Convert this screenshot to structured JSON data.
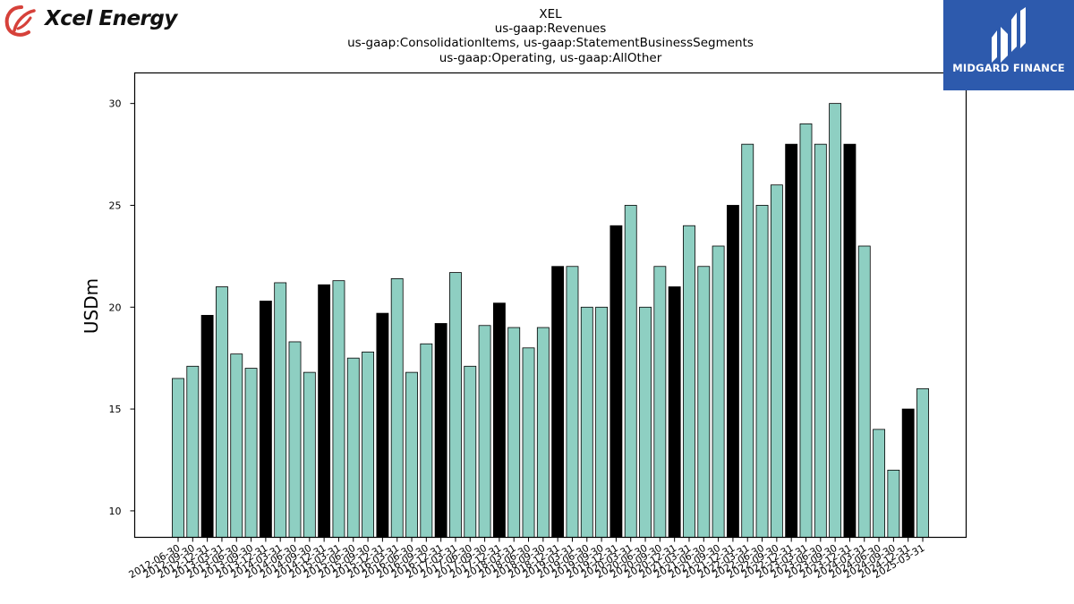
{
  "logos": {
    "left_brand": "Xcel Energy",
    "right_brand": "MIDGARD FINANCE",
    "brand_color_right": "#2d5aad",
    "brand_color_left": "#d6413a"
  },
  "chart_data": {
    "type": "bar",
    "title_lines": [
      "XEL",
      "us-gaap:Revenues",
      "us-gaap:ConsolidationItems, us-gaap:StatementBusinessSegments",
      "us-gaap:Operating, us-gaap:AllOther"
    ],
    "xlabel": "",
    "ylabel": "USDm",
    "ylim": [
      8.7,
      31.5
    ],
    "yticks": [
      10,
      15,
      20,
      25,
      30
    ],
    "grid": false,
    "colors": {
      "regular": "#8ecfc2",
      "year_end": "#000000",
      "edge": "#000000"
    },
    "categories": [
      "2012-06-30",
      "2012-09-30",
      "2012-12-31",
      "2013-03-31",
      "2013-06-30",
      "2013-09-30",
      "2013-12-31",
      "2014-03-31",
      "2014-06-30",
      "2014-09-30",
      "2014-12-31",
      "2015-03-31",
      "2015-06-30",
      "2015-09-30",
      "2015-12-31",
      "2016-03-31",
      "2016-06-30",
      "2016-09-30",
      "2016-12-31",
      "2017-03-31",
      "2017-06-30",
      "2017-09-30",
      "2017-12-31",
      "2018-03-31",
      "2018-06-30",
      "2018-09-30",
      "2018-12-31",
      "2019-03-31",
      "2019-06-30",
      "2019-09-30",
      "2019-12-31",
      "2020-03-31",
      "2020-06-30",
      "2020-09-30",
      "2020-12-31",
      "2021-03-31",
      "2021-06-30",
      "2021-09-30",
      "2021-12-31",
      "2022-03-31",
      "2022-06-30",
      "2022-09-30",
      "2022-12-31",
      "2023-03-31",
      "2023-06-30",
      "2023-09-30",
      "2023-12-31",
      "2024-03-31",
      "2024-06-30",
      "2024-09-30",
      "2024-12-31",
      "2025-03-31"
    ],
    "values": [
      16.5,
      17.1,
      19.6,
      21.0,
      17.7,
      17.0,
      20.3,
      21.2,
      18.3,
      16.8,
      21.1,
      21.3,
      17.5,
      17.8,
      19.7,
      21.4,
      16.8,
      18.2,
      19.2,
      21.7,
      17.1,
      19.1,
      20.2,
      19.0,
      18.0,
      19.0,
      22.0,
      22.0,
      20.0,
      20.0,
      24.0,
      25.0,
      20.0,
      22.0,
      21.0,
      24.0,
      22.0,
      23.0,
      25.0,
      28.0,
      25.0,
      26.0,
      28.0,
      29.0,
      28.0,
      30.0,
      28.0,
      23.0,
      14.0,
      12.0,
      15.0,
      16.0
    ],
    "highlight": [
      false,
      false,
      true,
      false,
      false,
      false,
      true,
      false,
      false,
      false,
      true,
      false,
      false,
      false,
      true,
      false,
      false,
      false,
      true,
      false,
      false,
      false,
      true,
      false,
      false,
      false,
      true,
      false,
      false,
      false,
      true,
      false,
      false,
      false,
      true,
      false,
      false,
      false,
      true,
      false,
      false,
      false,
      true,
      false,
      false,
      false,
      true,
      false,
      false,
      false,
      true,
      false
    ]
  }
}
